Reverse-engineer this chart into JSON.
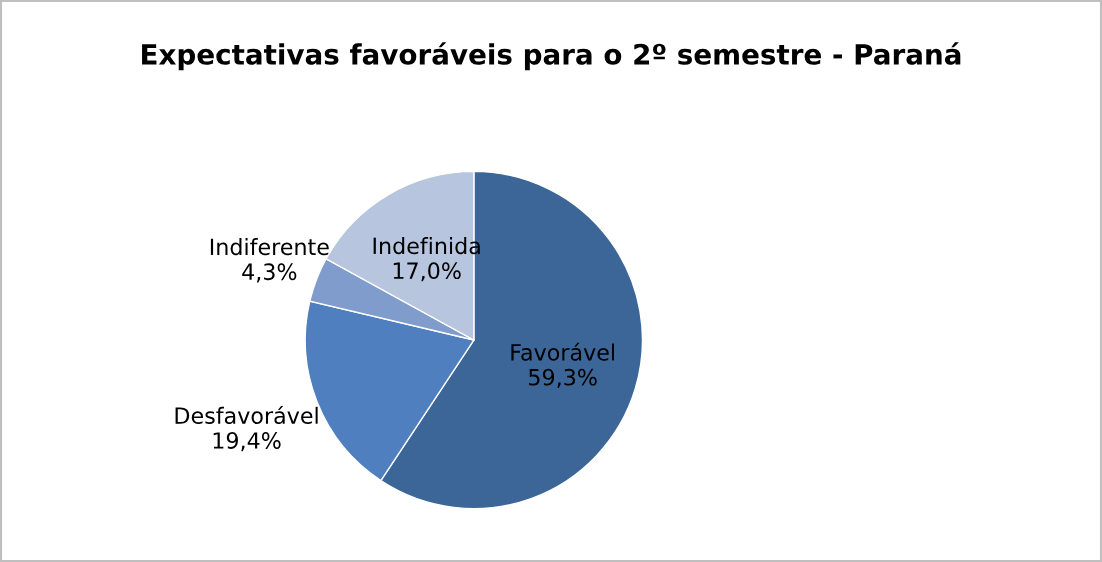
{
  "chart_data": {
    "type": "pie",
    "title": "Expectativas favoráveis para o 2º semestre - Paraná",
    "categories": [
      "Favorável",
      "Desfavorável",
      "Indiferente",
      "Indefinida"
    ],
    "values": [
      59.3,
      19.4,
      4.3,
      17.0
    ],
    "value_labels": [
      "59,3%",
      "19,4%",
      "4,3%",
      "17,0%"
    ],
    "colors": [
      "#3d6698",
      "#4f7fbf",
      "#7f9ccc",
      "#b7c5df"
    ],
    "legend": false
  }
}
